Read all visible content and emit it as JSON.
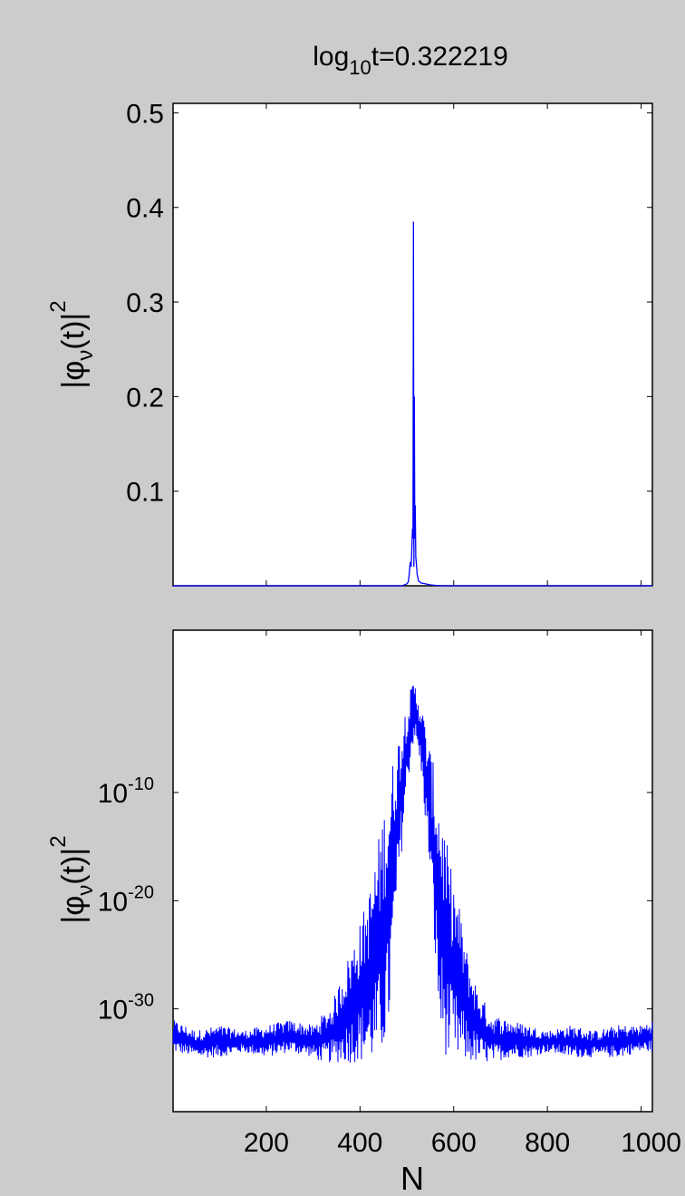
{
  "figure": {
    "title": {
      "prefix": "log",
      "sub": "10",
      "suffix": "t=0.322219"
    },
    "background": "#cccccc",
    "axes_color": "#000000"
  },
  "chart_data": [
    {
      "type": "line",
      "scale": "linear",
      "ylabel": {
        "main": "|φ",
        "sub": "ν",
        "tail": "(t)|",
        "sup": "2"
      },
      "xlim": [
        1,
        1024
      ],
      "ylim": [
        0,
        0.51
      ],
      "yticks": [
        0.1,
        0.2,
        0.3,
        0.4,
        0.5
      ],
      "ytick_labels": [
        "0.1",
        "0.2",
        "0.3",
        "0.4",
        "0.5"
      ],
      "xticks": [
        200,
        400,
        600,
        800,
        1000
      ],
      "xtick_labels_shown": false,
      "series": [
        {
          "color": "#0000ff",
          "points": [
            [
              1,
              0
            ],
            [
              490,
              0
            ],
            [
              495,
              0.001
            ],
            [
              500,
              0.002
            ],
            [
              503,
              0.004
            ],
            [
              505,
              0.012
            ],
            [
              507,
              0.025
            ],
            [
              509,
              0.02
            ],
            [
              510,
              0.03
            ],
            [
              511,
              0.045
            ],
            [
              512,
              0.06
            ],
            [
              513,
              0.05
            ],
            [
              514,
              0.385
            ],
            [
              515,
              0.02
            ],
            [
              516,
              0.2
            ],
            [
              517,
              0.05
            ],
            [
              518,
              0.085
            ],
            [
              519,
              0.03
            ],
            [
              520,
              0.025
            ],
            [
              522,
              0.012
            ],
            [
              525,
              0.005
            ],
            [
              530,
              0.003
            ],
            [
              540,
              0.002
            ],
            [
              550,
              0.001
            ],
            [
              560,
              0.0005
            ],
            [
              570,
              0.0002
            ],
            [
              580,
              0
            ],
            [
              1024,
              0
            ]
          ]
        }
      ]
    },
    {
      "type": "line",
      "scale": "log",
      "ylabel": {
        "main": "|φ",
        "sub": "ν",
        "tail": "(t)|",
        "sup": "2"
      },
      "xlabel": "N",
      "xlim": [
        1,
        1024
      ],
      "ylim_exp": [
        -39.5,
        5
      ],
      "yticks_exp": [
        -30,
        -20,
        -10
      ],
      "ytick_labels": [
        {
          "base": "10",
          "exp": "-30"
        },
        {
          "base": "10",
          "exp": "-20"
        },
        {
          "base": "10",
          "exp": "-10"
        }
      ],
      "xticks": [
        200,
        400,
        600,
        800,
        1000
      ],
      "xtick_labels": [
        "200",
        "400",
        "600",
        "800",
        "1000"
      ],
      "series": [
        {
          "color": "#0000ff",
          "envelope_log10": {
            "x": [
              1,
              50,
              100,
              150,
              200,
              250,
              300,
              320,
              340,
              360,
              380,
              400,
              420,
              440,
              460,
              480,
              500,
              515,
              530,
              550,
              570,
              590,
              610,
              630,
              650,
              680,
              720,
              760,
              800,
              850,
              900,
              950,
              1000,
              1024
            ],
            "upper": [
              -31,
              -32,
              -31.5,
              -32,
              -31.5,
              -31,
              -31.5,
              -30.5,
              -29.5,
              -27,
              -24.5,
              -22,
              -19,
              -14,
              -9,
              -5,
              -1.5,
              0.5,
              -1.5,
              -6,
              -10,
              -16,
              -20,
              -25,
              -28,
              -30.5,
              -31,
              -31.5,
              -32,
              -31.5,
              -32,
              -31.5,
              -31.5,
              -31
            ],
            "lower": [
              -34,
              -34.5,
              -34.5,
              -34,
              -34.5,
              -34,
              -34.5,
              -35,
              -35,
              -35,
              -35,
              -35,
              -35,
              -35,
              -33,
              -20,
              -10,
              -5,
              -8,
              -18,
              -33,
              -35,
              -35,
              -35,
              -35,
              -35,
              -34.5,
              -34.5,
              -34,
              -34.5,
              -34.5,
              -34.5,
              -34,
              -34
            ]
          }
        }
      ]
    }
  ]
}
